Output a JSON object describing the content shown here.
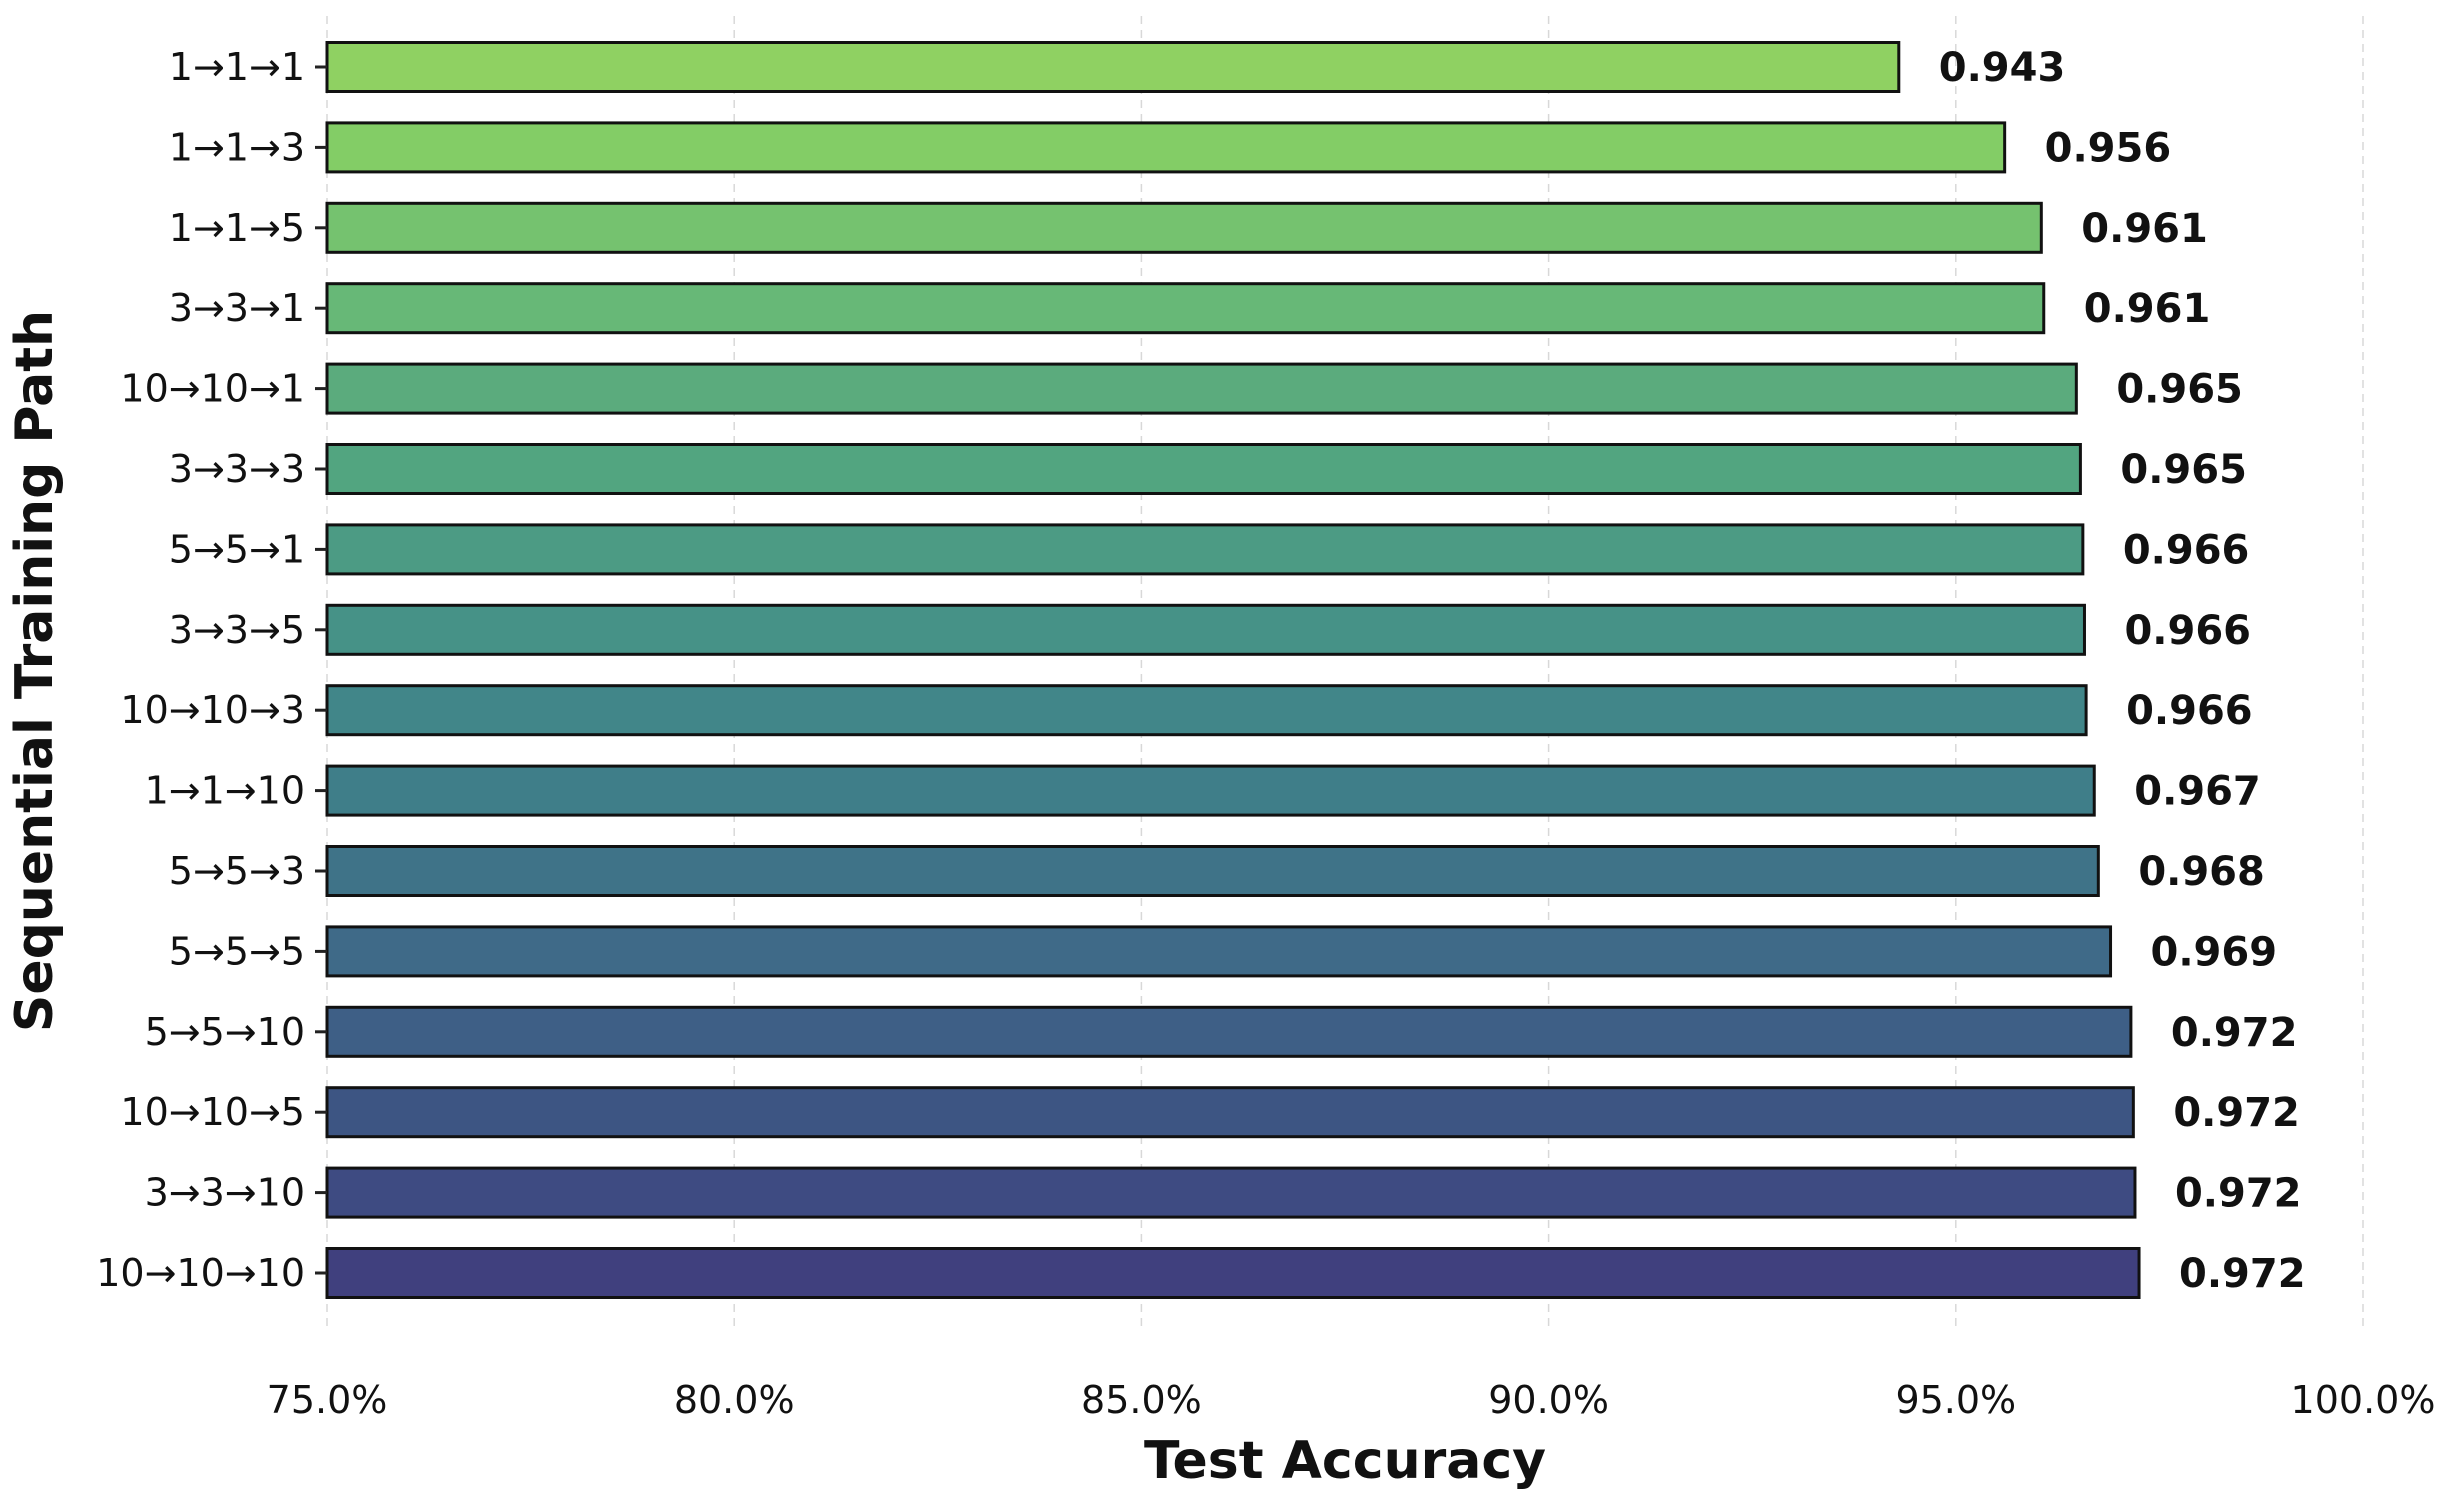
{
  "chart_data": {
    "type": "bar",
    "orientation": "horizontal",
    "xlabel": "Test Accuracy",
    "ylabel": "Sequential Training Path",
    "xlim": [
      75,
      100
    ],
    "x_ticks": [
      75,
      80,
      85,
      90,
      95,
      100
    ],
    "x_tick_labels": [
      "75.0%",
      "80.0%",
      "85.0%",
      "90.0%",
      "95.0%",
      "100.0%"
    ],
    "grid": "x-dashed",
    "colormap": "viridis",
    "categories": [
      "1→1→1",
      "1→1→3",
      "1→1→5",
      "3→3→1",
      "10→10→1",
      "3→3→3",
      "5→5→1",
      "3→3→5",
      "10→10→3",
      "1→1→10",
      "5→5→3",
      "5→5→5",
      "5→5→10",
      "10→10→5",
      "3→3→10",
      "10→10→10"
    ],
    "values": [
      94.3,
      95.6,
      96.05,
      96.08,
      96.48,
      96.53,
      96.56,
      96.58,
      96.6,
      96.7,
      96.75,
      96.9,
      97.15,
      97.18,
      97.2,
      97.25
    ],
    "value_labels": [
      "0.943",
      "0.956",
      "0.961",
      "0.961",
      "0.965",
      "0.965",
      "0.966",
      "0.966",
      "0.966",
      "0.967",
      "0.968",
      "0.969",
      "0.972",
      "0.972",
      "0.972",
      "0.972"
    ],
    "bar_colors": [
      "#8fd162",
      "#83cd66",
      "#75c26f",
      "#67b877",
      "#5bab7d",
      "#52a580",
      "#4c9b84",
      "#469287",
      "#418689",
      "#3f7e89",
      "#3f7388",
      "#3f6a88",
      "#3e5f86",
      "#3d5583",
      "#3e4b82",
      "#40407e"
    ]
  }
}
